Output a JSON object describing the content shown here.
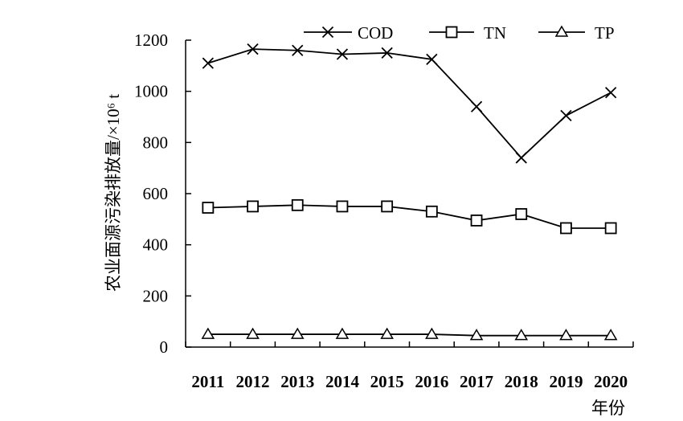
{
  "chart_data": {
    "type": "line",
    "categories": [
      "2011",
      "2012",
      "2013",
      "2014",
      "2015",
      "2016",
      "2017",
      "2018",
      "2019",
      "2020"
    ],
    "series": [
      {
        "name": "COD",
        "marker": "x",
        "values": [
          1110,
          1165,
          1160,
          1145,
          1150,
          1125,
          940,
          740,
          905,
          995
        ]
      },
      {
        "name": "TN",
        "marker": "square",
        "values": [
          545,
          550,
          555,
          550,
          550,
          530,
          495,
          520,
          465,
          465
        ]
      },
      {
        "name": "TP",
        "marker": "triangle",
        "values": [
          50,
          50,
          50,
          50,
          50,
          50,
          45,
          45,
          45,
          45
        ]
      }
    ],
    "ylim": [
      0,
      1200
    ],
    "yticks": [
      0,
      200,
      400,
      600,
      800,
      1000,
      1200
    ],
    "ylabel": "农业面源污染排放量/×10⁶ t",
    "xlabel": "年份",
    "legend_position": "top",
    "grid": false,
    "line_color": "#000000"
  }
}
